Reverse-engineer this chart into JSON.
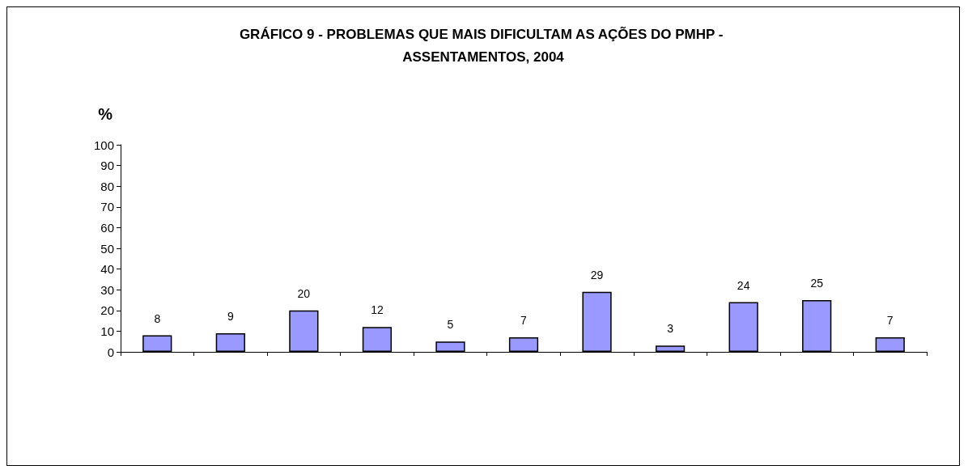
{
  "chart_data": {
    "type": "bar",
    "title": "GRÁFICO 9 - PROBLEMAS QUE MAIS DIFICULTAM AS AÇÕES DO PMHP - ASSENTAMENTOS, 2004",
    "ylabel": "%",
    "categories": [
      null,
      null,
      null,
      null,
      null,
      null,
      null,
      null,
      null,
      null,
      null
    ],
    "values": [
      8,
      9,
      20,
      12,
      5,
      7,
      29,
      3,
      24,
      25,
      7
    ],
    "color": "#9999ff",
    "ylim": [
      0,
      100
    ],
    "yticks": [
      0,
      10,
      20,
      30,
      40,
      50,
      60,
      70,
      80,
      90,
      100
    ],
    "grid": false,
    "data_labels": true
  }
}
